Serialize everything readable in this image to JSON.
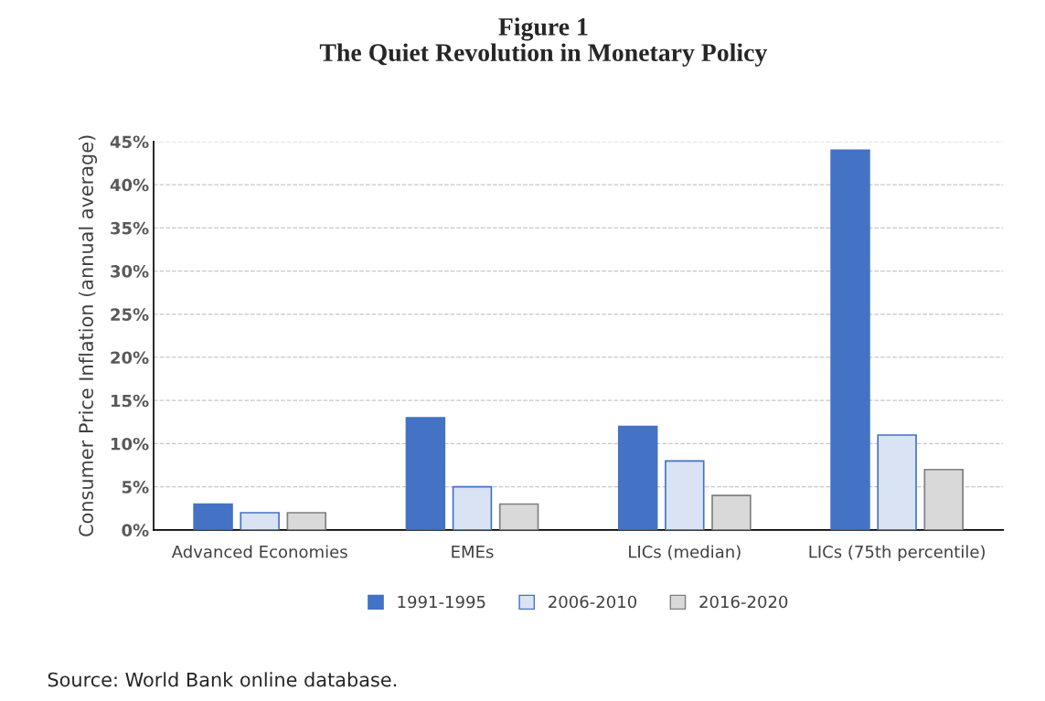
{
  "chart_data": {
    "type": "bar",
    "title": "Figure 1\nThe Quiet Revolution in Monetary Policy",
    "ylabel": "Consumer Price Inflation (annual average)",
    "categories": [
      "Advanced Economies",
      "EMEs",
      "LICs (median)",
      "LICs (75th percentile)"
    ],
    "series": [
      {
        "name": "1991-1995",
        "color": "#4472c4",
        "values": [
          3,
          13,
          12,
          44
        ]
      },
      {
        "name": "2006-2010",
        "color": "#dae3f3",
        "values": [
          2,
          5,
          8,
          11
        ]
      },
      {
        "name": "2016-2020",
        "color": "#d9d9d9",
        "values": [
          2,
          3,
          4,
          7
        ]
      }
    ],
    "ylim": [
      0,
      45
    ],
    "yticks": [
      {
        "value": 0,
        "label": "0%"
      },
      {
        "value": 5,
        "label": "5%"
      },
      {
        "value": 10,
        "label": "10%"
      },
      {
        "value": 15,
        "label": "15%"
      },
      {
        "value": 20,
        "label": "20%"
      },
      {
        "value": 25,
        "label": "25%"
      },
      {
        "value": 30,
        "label": "30%"
      },
      {
        "value": 35,
        "label": "35%"
      },
      {
        "value": 40,
        "label": "40%"
      },
      {
        "value": 45,
        "label": "45%"
      }
    ],
    "grid": "y",
    "legend": "bottom",
    "annotations": [
      "Source: World Bank online database."
    ]
  }
}
